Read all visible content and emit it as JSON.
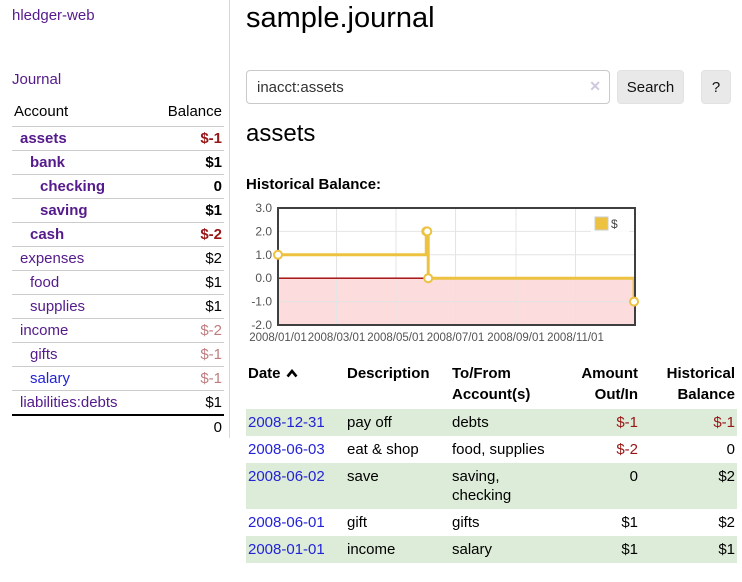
{
  "colors": {
    "link_purple": "#551a8b",
    "link_blue": "#2323d6",
    "negative_strong": "#971616",
    "negative_soft": "#c17d7d",
    "row_green": "#ddecd8",
    "series_gold": "#edc240",
    "zero_line": "#a00000",
    "negative_region_fill": "#fcdcdc",
    "grid_line": "#e4e4e4",
    "chart_border": "#3f3f3f",
    "axis_label": "#545454"
  },
  "app": {
    "brand": "hledger-web",
    "nav_journal": "Journal"
  },
  "sidebar": {
    "col_account": "Account",
    "col_balance": "Balance",
    "accounts": [
      {
        "name": "assets",
        "indent": 0,
        "bold": true,
        "name_color": "purple",
        "balance": "$-1",
        "balance_color": "neg-strong"
      },
      {
        "name": "bank",
        "indent": 1,
        "bold": true,
        "name_color": "purple",
        "balance": "$1",
        "balance_color": "black"
      },
      {
        "name": "checking",
        "indent": 2,
        "bold": true,
        "name_color": "purple",
        "balance": "0",
        "balance_color": "black"
      },
      {
        "name": "saving",
        "indent": 2,
        "bold": true,
        "name_color": "purple",
        "balance": "$1",
        "balance_color": "black"
      },
      {
        "name": "cash",
        "indent": 1,
        "bold": true,
        "name_color": "purple",
        "balance": "$-2",
        "balance_color": "neg-strong"
      },
      {
        "name": "expenses",
        "indent": 0,
        "bold": false,
        "name_color": "purple",
        "balance": "$2",
        "balance_color": "black"
      },
      {
        "name": "food",
        "indent": 1,
        "bold": false,
        "name_color": "purple",
        "balance": "$1",
        "balance_color": "black"
      },
      {
        "name": "supplies",
        "indent": 1,
        "bold": false,
        "name_color": "purple",
        "balance": "$1",
        "balance_color": "black"
      },
      {
        "name": "income",
        "indent": 0,
        "bold": false,
        "name_color": "purple",
        "balance": "$-2",
        "balance_color": "neg-soft"
      },
      {
        "name": "gifts",
        "indent": 1,
        "bold": false,
        "name_color": "purple",
        "balance": "$-1",
        "balance_color": "neg-soft"
      },
      {
        "name": "salary",
        "indent": 1,
        "bold": false,
        "name_color": "blue",
        "balance": "$-1",
        "balance_color": "neg-soft"
      },
      {
        "name": "liabilities:debts",
        "indent": 0,
        "bold": false,
        "name_color": "purple",
        "balance": "$1",
        "balance_color": "black"
      }
    ],
    "total": "0"
  },
  "main": {
    "title": "sample.journal",
    "search": {
      "value": "inacct:assets",
      "clear_icon": "✕",
      "button": "Search",
      "help_button": "?"
    },
    "account_heading": "assets"
  },
  "chart_data": {
    "type": "line",
    "step": true,
    "title": "Historical Balance:",
    "legend": "$",
    "legend_position": "top-right",
    "grid": true,
    "ylim": [
      -2,
      3
    ],
    "y_ticks": [
      "3.0",
      "2.0",
      "1.0",
      "0.0",
      "-1.0",
      "-2.0"
    ],
    "y_tick_values": [
      3,
      2,
      1,
      0,
      -1,
      -2
    ],
    "x_range": [
      "2008-01-01",
      "2009-01-01"
    ],
    "x_ticks": [
      "2008/01/01",
      "2008/03/01",
      "2008/05/01",
      "2008/07/01",
      "2008/09/01",
      "2008/11/01"
    ],
    "series": [
      {
        "name": "$",
        "points": [
          [
            "2008-01-01",
            1
          ],
          [
            "2008-06-01",
            2
          ],
          [
            "2008-06-02",
            2
          ],
          [
            "2008-06-03",
            0
          ],
          [
            "2008-12-31",
            -1
          ]
        ]
      }
    ]
  },
  "register": {
    "headers": [
      {
        "label": "Date",
        "align": "left",
        "sorted": "asc"
      },
      {
        "label": "Description",
        "align": "left"
      },
      {
        "label": "To/From Account(s)",
        "align": "left"
      },
      {
        "label": "Amount Out/In",
        "align": "right"
      },
      {
        "label": "Historical Balance",
        "align": "right"
      }
    ],
    "sort_icon": "chevron-up-icon",
    "rows": [
      {
        "date": "2008-12-31",
        "description": "pay off",
        "accounts": "debts",
        "amount": "$-1",
        "amount_negative": true,
        "balance": "$-1",
        "balance_negative": true
      },
      {
        "date": "2008-06-03",
        "description": "eat & shop",
        "accounts": "food, supplies",
        "amount": "$-2",
        "amount_negative": true,
        "balance": "0",
        "balance_negative": false
      },
      {
        "date": "2008-06-02",
        "description": "save",
        "accounts": "saving, checking",
        "amount": "0",
        "amount_negative": false,
        "balance": "$2",
        "balance_negative": false
      },
      {
        "date": "2008-06-01",
        "description": "gift",
        "accounts": "gifts",
        "amount": "$1",
        "amount_negative": false,
        "balance": "$2",
        "balance_negative": false
      },
      {
        "date": "2008-01-01",
        "description": "income",
        "accounts": "salary",
        "amount": "$1",
        "amount_negative": false,
        "balance": "$1",
        "balance_negative": false
      }
    ]
  }
}
